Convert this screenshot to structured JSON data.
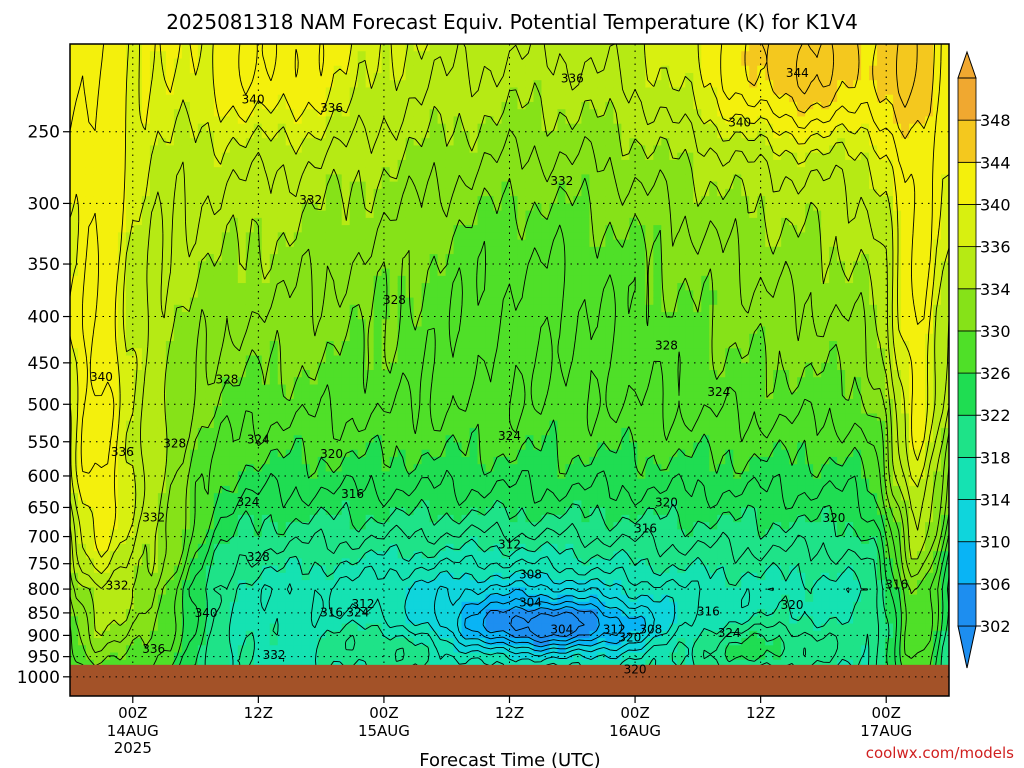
{
  "chart_data": {
    "type": "heatmap",
    "title": "2025081318 NAM Forecast Equiv. Potential Temperature (K) for K1V4",
    "xlabel": "Forecast Time (UTC)",
    "ylabel": "",
    "x_range": [
      "2025-08-13 18Z",
      "2025-08-17 06Z"
    ],
    "x_ticks": [
      {
        "hour": 6,
        "label": "00Z",
        "sub": [
          "14AUG",
          "2025"
        ]
      },
      {
        "hour": 18,
        "label": "12Z",
        "sub": []
      },
      {
        "hour": 30,
        "label": "00Z",
        "sub": [
          "15AUG"
        ]
      },
      {
        "hour": 42,
        "label": "12Z",
        "sub": []
      },
      {
        "hour": 54,
        "label": "00Z",
        "sub": [
          "16AUG"
        ]
      },
      {
        "hour": 66,
        "label": "12Z",
        "sub": []
      },
      {
        "hour": 78,
        "label": "00Z",
        "sub": [
          "17AUG"
        ]
      }
    ],
    "x_hour_range": [
      0,
      84
    ],
    "y_scale": "log",
    "y_axis_reversed": true,
    "y_range": [
      1050,
      200
    ],
    "y_ticks": [
      250,
      300,
      350,
      400,
      450,
      500,
      550,
      600,
      650,
      700,
      750,
      800,
      850,
      900,
      950,
      1000
    ],
    "grid": true,
    "ground_pressure": 970,
    "ground_color": "#a35228",
    "colorbar": {
      "levels": [
        302,
        306,
        310,
        314,
        318,
        322,
        326,
        330,
        334,
        336,
        340,
        344,
        348
      ],
      "colors": [
        "#1d8ef0",
        "#09b4f5",
        "#0fd5dc",
        "#15e2b2",
        "#1ee388",
        "#1fdd52",
        "#4fe028",
        "#86e218",
        "#b6ea14",
        "#d8f010",
        "#f4f00c",
        "#f4c81e",
        "#f0a830"
      ],
      "extend": "both"
    },
    "contour_labels": [
      {
        "value": "344",
        "x_hour": 69.5,
        "p": 215
      },
      {
        "value": "336",
        "x_hour": 48,
        "p": 218
      },
      {
        "value": "340",
        "x_hour": 17.5,
        "p": 230
      },
      {
        "value": "336",
        "x_hour": 25,
        "p": 235
      },
      {
        "value": "340",
        "x_hour": 64,
        "p": 244
      },
      {
        "value": "332",
        "x_hour": 47,
        "p": 283
      },
      {
        "value": "332",
        "x_hour": 23,
        "p": 297
      },
      {
        "value": "328",
        "x_hour": 31,
        "p": 383
      },
      {
        "value": "328",
        "x_hour": 57,
        "p": 430
      },
      {
        "value": "340",
        "x_hour": 3,
        "p": 466
      },
      {
        "value": "328",
        "x_hour": 15,
        "p": 469
      },
      {
        "value": "324",
        "x_hour": 62,
        "p": 484
      },
      {
        "value": "324",
        "x_hour": 42,
        "p": 541
      },
      {
        "value": "328",
        "x_hour": 10,
        "p": 552
      },
      {
        "value": "336",
        "x_hour": 5,
        "p": 564
      },
      {
        "value": "324",
        "x_hour": 18,
        "p": 546
      },
      {
        "value": "320",
        "x_hour": 25,
        "p": 567
      },
      {
        "value": "316",
        "x_hour": 27,
        "p": 627
      },
      {
        "value": "324",
        "x_hour": 17,
        "p": 640
      },
      {
        "value": "320",
        "x_hour": 57,
        "p": 641
      },
      {
        "value": "332",
        "x_hour": 8,
        "p": 666
      },
      {
        "value": "320",
        "x_hour": 73,
        "p": 667
      },
      {
        "value": "316",
        "x_hour": 55,
        "p": 685
      },
      {
        "value": "312",
        "x_hour": 42,
        "p": 713
      },
      {
        "value": "328",
        "x_hour": 18,
        "p": 736
      },
      {
        "value": "308",
        "x_hour": 44,
        "p": 770
      },
      {
        "value": "332",
        "x_hour": 4.5,
        "p": 792
      },
      {
        "value": "316",
        "x_hour": 79,
        "p": 790
      },
      {
        "value": "304",
        "x_hour": 44,
        "p": 827
      },
      {
        "value": "312",
        "x_hour": 28,
        "p": 830
      },
      {
        "value": "320",
        "x_hour": 69,
        "p": 832
      },
      {
        "value": "316",
        "x_hour": 25,
        "p": 848
      },
      {
        "value": "324",
        "x_hour": 27.5,
        "p": 848
      },
      {
        "value": "340",
        "x_hour": 13,
        "p": 849
      },
      {
        "value": "316",
        "x_hour": 61,
        "p": 846
      },
      {
        "value": "304",
        "x_hour": 47,
        "p": 885
      },
      {
        "value": "312",
        "x_hour": 52,
        "p": 885
      },
      {
        "value": "308",
        "x_hour": 55.5,
        "p": 885
      },
      {
        "value": "324",
        "x_hour": 63,
        "p": 893
      },
      {
        "value": "320",
        "x_hour": 53.5,
        "p": 904
      },
      {
        "value": "336",
        "x_hour": 8,
        "p": 931
      },
      {
        "value": "332",
        "x_hour": 19.5,
        "p": 945
      },
      {
        "value": "320",
        "x_hour": 54,
        "p": 980
      }
    ],
    "credit": "coolwx.com/models"
  },
  "colors": {
    "credit": "#d02020"
  }
}
